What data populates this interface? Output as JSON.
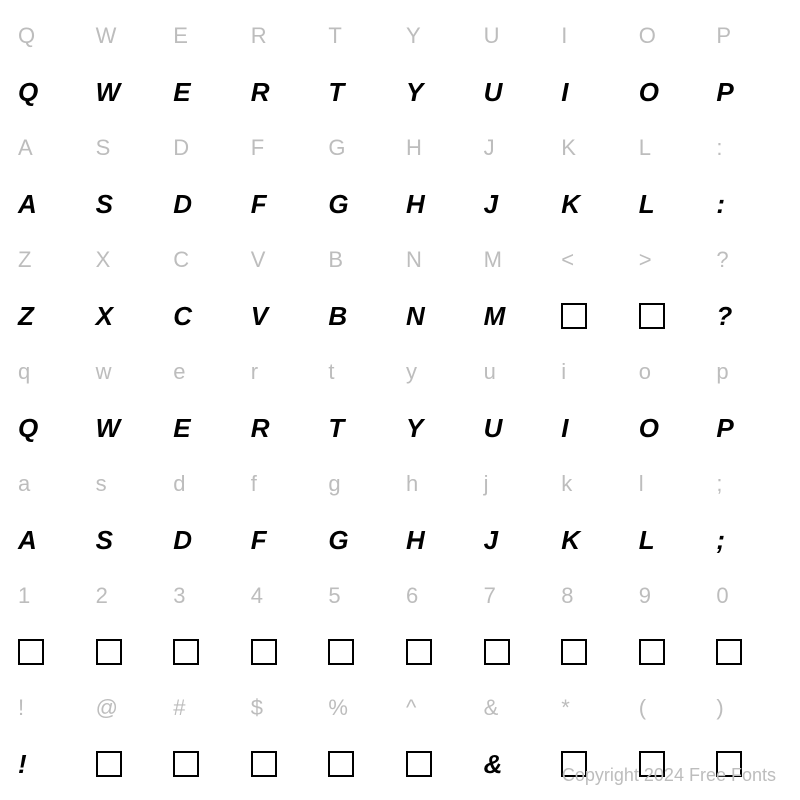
{
  "chart": {
    "columns": 10,
    "ref_color": "#bdbdbd",
    "glyph_color": "#000000",
    "ref_fontsize": 22,
    "glyph_fontsize": 26,
    "background_color": "#ffffff",
    "missing_box": {
      "size": 26,
      "border_width": 2,
      "border_color": "#000000"
    },
    "rows": [
      {
        "refs": [
          "Q",
          "W",
          "E",
          "R",
          "T",
          "Y",
          "U",
          "I",
          "O",
          "P"
        ],
        "glyphs": [
          {
            "type": "char",
            "v": "Q"
          },
          {
            "type": "char",
            "v": "W"
          },
          {
            "type": "char",
            "v": "E"
          },
          {
            "type": "char",
            "v": "R"
          },
          {
            "type": "char",
            "v": "T"
          },
          {
            "type": "char",
            "v": "Y"
          },
          {
            "type": "char",
            "v": "U"
          },
          {
            "type": "char",
            "v": "I"
          },
          {
            "type": "char",
            "v": "O"
          },
          {
            "type": "char",
            "v": "P"
          }
        ]
      },
      {
        "refs": [
          "A",
          "S",
          "D",
          "F",
          "G",
          "H",
          "J",
          "K",
          "L",
          ":"
        ],
        "glyphs": [
          {
            "type": "char",
            "v": "A"
          },
          {
            "type": "char",
            "v": "S"
          },
          {
            "type": "char",
            "v": "D"
          },
          {
            "type": "char",
            "v": "F"
          },
          {
            "type": "char",
            "v": "G"
          },
          {
            "type": "char",
            "v": "H"
          },
          {
            "type": "char",
            "v": "J"
          },
          {
            "type": "char",
            "v": "K"
          },
          {
            "type": "char",
            "v": "L"
          },
          {
            "type": "char",
            "v": ":"
          }
        ]
      },
      {
        "refs": [
          "Z",
          "X",
          "C",
          "V",
          "B",
          "N",
          "M",
          "<",
          ">",
          "?"
        ],
        "glyphs": [
          {
            "type": "char",
            "v": "Z"
          },
          {
            "type": "char",
            "v": "X"
          },
          {
            "type": "char",
            "v": "C"
          },
          {
            "type": "char",
            "v": "V"
          },
          {
            "type": "char",
            "v": "B"
          },
          {
            "type": "char",
            "v": "N"
          },
          {
            "type": "char",
            "v": "M"
          },
          {
            "type": "missing"
          },
          {
            "type": "missing"
          },
          {
            "type": "char",
            "v": "?"
          }
        ]
      },
      {
        "refs": [
          "q",
          "w",
          "e",
          "r",
          "t",
          "y",
          "u",
          "i",
          "o",
          "p"
        ],
        "glyphs": [
          {
            "type": "char",
            "v": "Q"
          },
          {
            "type": "char",
            "v": "W"
          },
          {
            "type": "char",
            "v": "E"
          },
          {
            "type": "char",
            "v": "R"
          },
          {
            "type": "char",
            "v": "T"
          },
          {
            "type": "char",
            "v": "Y"
          },
          {
            "type": "char",
            "v": "U"
          },
          {
            "type": "char",
            "v": "I"
          },
          {
            "type": "char",
            "v": "O"
          },
          {
            "type": "char",
            "v": "P"
          }
        ]
      },
      {
        "refs": [
          "a",
          "s",
          "d",
          "f",
          "g",
          "h",
          "j",
          "k",
          "l",
          ";"
        ],
        "glyphs": [
          {
            "type": "char",
            "v": "A"
          },
          {
            "type": "char",
            "v": "S"
          },
          {
            "type": "char",
            "v": "D"
          },
          {
            "type": "char",
            "v": "F"
          },
          {
            "type": "char",
            "v": "G"
          },
          {
            "type": "char",
            "v": "H"
          },
          {
            "type": "char",
            "v": "J"
          },
          {
            "type": "char",
            "v": "K"
          },
          {
            "type": "char",
            "v": "L"
          },
          {
            "type": "char",
            "v": ";"
          }
        ]
      },
      {
        "refs": [
          "1",
          "2",
          "3",
          "4",
          "5",
          "6",
          "7",
          "8",
          "9",
          "0"
        ],
        "glyphs": [
          {
            "type": "missing"
          },
          {
            "type": "missing"
          },
          {
            "type": "missing"
          },
          {
            "type": "missing"
          },
          {
            "type": "missing"
          },
          {
            "type": "missing"
          },
          {
            "type": "missing"
          },
          {
            "type": "missing"
          },
          {
            "type": "missing"
          },
          {
            "type": "missing"
          }
        ]
      },
      {
        "refs": [
          "!",
          "@",
          "#",
          "$",
          "%",
          "^",
          "&",
          "*",
          "(",
          ")"
        ],
        "glyphs": [
          {
            "type": "char",
            "v": "!"
          },
          {
            "type": "missing"
          },
          {
            "type": "missing"
          },
          {
            "type": "missing"
          },
          {
            "type": "missing"
          },
          {
            "type": "missing"
          },
          {
            "type": "char",
            "v": "&"
          },
          {
            "type": "missing"
          },
          {
            "type": "missing"
          },
          {
            "type": "missing"
          }
        ]
      }
    ]
  },
  "footer": {
    "copyright": "Copyright 2024 Free Fonts"
  }
}
